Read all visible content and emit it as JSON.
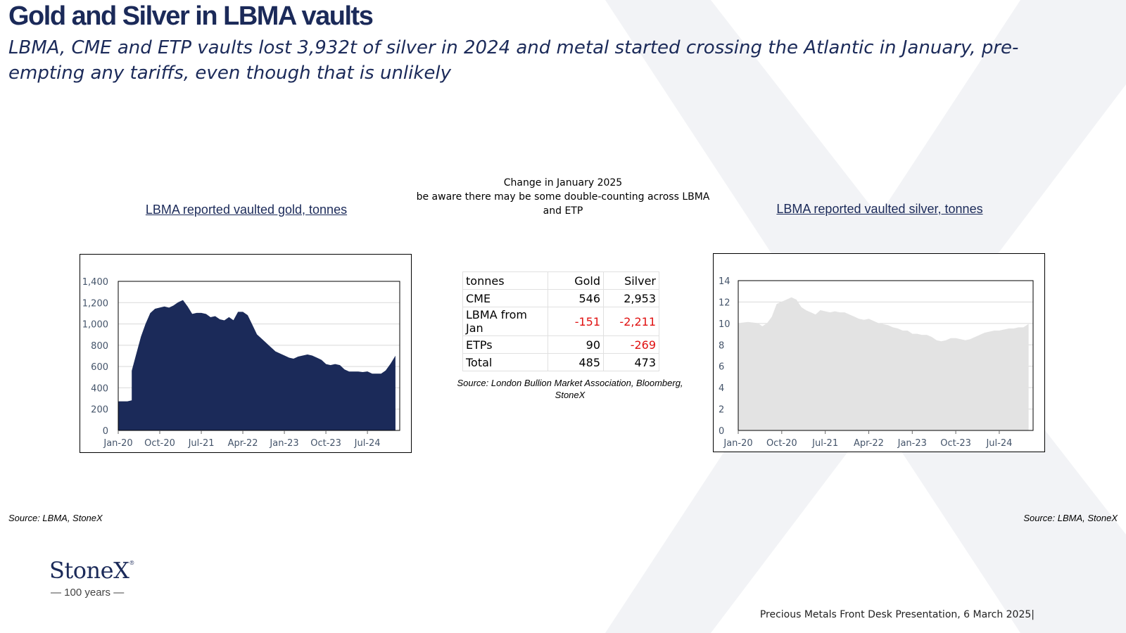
{
  "slide": {
    "title": "Gold and Silver in LBMA vaults",
    "subtitle": "LBMA, CME and ETP vaults lost 3,932t of silver in 2024 and  metal started crossing the Atlantic in January, pre-empting any tariffs, even though that is unlikely",
    "footer": "Precious Metals Front Desk Presentation, 6 March 2025|",
    "source_left": "Source: LBMA, StoneX",
    "source_right": "Source: LBMA, StoneX",
    "logo": {
      "name": "StoneX",
      "tagline": "— 100 years —"
    }
  },
  "center": {
    "note_line1": "Change in January 2025",
    "note_line2": "be aware there may be some double-counting across LBMA and ETP",
    "source": "Source: London Bullion Market Association, Bloomberg, StoneX"
  },
  "colors": {
    "gold_fill": "#1b2a59",
    "silver_fill": "#e3e3e3",
    "negative": "#e01010",
    "brand": "#1b2a59"
  },
  "chart_data": [
    {
      "type": "area",
      "title": "LBMA reported vaulted gold, tonnes",
      "x_ticks": [
        "Jan-20",
        "Oct-20",
        "Jul-21",
        "Apr-22",
        "Jan-23",
        "Oct-23",
        "Jul-24"
      ],
      "y_ticks": [
        "0",
        "200",
        "400",
        "600",
        "800",
        "1,000",
        "1,200",
        "1,400"
      ],
      "ylim": [
        0,
        1400
      ],
      "series": [
        {
          "values": [
            {
              "x": "2020-01",
              "y": 270
            },
            {
              "x": "2020-03",
              "y": 270
            },
            {
              "x": "2020-04",
              "y": 280
            },
            {
              "x": "2020-04",
              "y": 560
            },
            {
              "x": "2020-05",
              "y": 720
            },
            {
              "x": "2020-06",
              "y": 880
            },
            {
              "x": "2020-07",
              "y": 1000
            },
            {
              "x": "2020-08",
              "y": 1100
            },
            {
              "x": "2020-09",
              "y": 1140
            },
            {
              "x": "2020-10",
              "y": 1150
            },
            {
              "x": "2020-11",
              "y": 1160
            },
            {
              "x": "2020-12",
              "y": 1150
            },
            {
              "x": "2021-01",
              "y": 1170
            },
            {
              "x": "2021-02",
              "y": 1200
            },
            {
              "x": "2021-03",
              "y": 1220
            },
            {
              "x": "2021-04",
              "y": 1160
            },
            {
              "x": "2021-05",
              "y": 1090
            },
            {
              "x": "2021-06",
              "y": 1100
            },
            {
              "x": "2021-07",
              "y": 1100
            },
            {
              "x": "2021-08",
              "y": 1090
            },
            {
              "x": "2021-09",
              "y": 1060
            },
            {
              "x": "2021-10",
              "y": 1070
            },
            {
              "x": "2021-11",
              "y": 1040
            },
            {
              "x": "2021-12",
              "y": 1030
            },
            {
              "x": "2022-01",
              "y": 1060
            },
            {
              "x": "2022-02",
              "y": 1030
            },
            {
              "x": "2022-03",
              "y": 1110
            },
            {
              "x": "2022-04",
              "y": 1110
            },
            {
              "x": "2022-05",
              "y": 1080
            },
            {
              "x": "2022-06",
              "y": 990
            },
            {
              "x": "2022-07",
              "y": 900
            },
            {
              "x": "2022-08",
              "y": 860
            },
            {
              "x": "2022-09",
              "y": 820
            },
            {
              "x": "2022-10",
              "y": 780
            },
            {
              "x": "2022-11",
              "y": 740
            },
            {
              "x": "2022-12",
              "y": 720
            },
            {
              "x": "2023-01",
              "y": 700
            },
            {
              "x": "2023-02",
              "y": 680
            },
            {
              "x": "2023-03",
              "y": 670
            },
            {
              "x": "2023-04",
              "y": 690
            },
            {
              "x": "2023-05",
              "y": 700
            },
            {
              "x": "2023-06",
              "y": 710
            },
            {
              "x": "2023-07",
              "y": 700
            },
            {
              "x": "2023-08",
              "y": 680
            },
            {
              "x": "2023-09",
              "y": 660
            },
            {
              "x": "2023-10",
              "y": 620
            },
            {
              "x": "2023-11",
              "y": 610
            },
            {
              "x": "2023-12",
              "y": 620
            },
            {
              "x": "2024-01",
              "y": 610
            },
            {
              "x": "2024-02",
              "y": 570
            },
            {
              "x": "2024-03",
              "y": 550
            },
            {
              "x": "2024-04",
              "y": 550
            },
            {
              "x": "2024-05",
              "y": 550
            },
            {
              "x": "2024-06",
              "y": 545
            },
            {
              "x": "2024-07",
              "y": 550
            },
            {
              "x": "2024-08",
              "y": 530
            },
            {
              "x": "2024-09",
              "y": 530
            },
            {
              "x": "2024-10",
              "y": 530
            },
            {
              "x": "2024-11",
              "y": 560
            },
            {
              "x": "2024-12",
              "y": 620
            },
            {
              "x": "2025-01",
              "y": 690
            }
          ]
        }
      ]
    },
    {
      "type": "area",
      "title": "LBMA reported vaulted silver, tonnes",
      "x_ticks": [
        "Jan-20",
        "Oct-20",
        "Jul-21",
        "Apr-22",
        "Jan-23",
        "Oct-23",
        "Jul-24"
      ],
      "y_ticks": [
        "0",
        "2",
        "4",
        "6",
        "8",
        "10",
        "12",
        "14"
      ],
      "ylim": [
        0,
        14
      ],
      "series": [
        {
          "values": [
            {
              "x": "2020-01",
              "y": 10.0
            },
            {
              "x": "2020-03",
              "y": 10.1
            },
            {
              "x": "2020-05",
              "y": 10.0
            },
            {
              "x": "2020-06",
              "y": 9.7
            },
            {
              "x": "2020-07",
              "y": 10.0
            },
            {
              "x": "2020-08",
              "y": 10.6
            },
            {
              "x": "2020-09",
              "y": 11.8
            },
            {
              "x": "2020-10",
              "y": 12.0
            },
            {
              "x": "2020-11",
              "y": 12.2
            },
            {
              "x": "2020-12",
              "y": 12.4
            },
            {
              "x": "2021-01",
              "y": 12.2
            },
            {
              "x": "2021-02",
              "y": 11.5
            },
            {
              "x": "2021-03",
              "y": 11.2
            },
            {
              "x": "2021-04",
              "y": 11.0
            },
            {
              "x": "2021-05",
              "y": 10.8
            },
            {
              "x": "2021-06",
              "y": 11.2
            },
            {
              "x": "2021-07",
              "y": 11.1
            },
            {
              "x": "2021-08",
              "y": 11.0
            },
            {
              "x": "2021-09",
              "y": 11.1
            },
            {
              "x": "2021-10",
              "y": 11.0
            },
            {
              "x": "2021-11",
              "y": 11.0
            },
            {
              "x": "2021-12",
              "y": 10.8
            },
            {
              "x": "2022-01",
              "y": 10.6
            },
            {
              "x": "2022-02",
              "y": 10.4
            },
            {
              "x": "2022-03",
              "y": 10.3
            },
            {
              "x": "2022-04",
              "y": 10.4
            },
            {
              "x": "2022-05",
              "y": 10.2
            },
            {
              "x": "2022-06",
              "y": 10.0
            },
            {
              "x": "2022-07",
              "y": 9.9
            },
            {
              "x": "2022-08",
              "y": 9.8
            },
            {
              "x": "2022-09",
              "y": 9.6
            },
            {
              "x": "2022-10",
              "y": 9.5
            },
            {
              "x": "2022-11",
              "y": 9.3
            },
            {
              "x": "2022-12",
              "y": 9.3
            },
            {
              "x": "2023-01",
              "y": 9.0
            },
            {
              "x": "2023-02",
              "y": 9.0
            },
            {
              "x": "2023-03",
              "y": 8.9
            },
            {
              "x": "2023-04",
              "y": 8.9
            },
            {
              "x": "2023-05",
              "y": 8.7
            },
            {
              "x": "2023-06",
              "y": 8.4
            },
            {
              "x": "2023-07",
              "y": 8.3
            },
            {
              "x": "2023-08",
              "y": 8.4
            },
            {
              "x": "2023-09",
              "y": 8.6
            },
            {
              "x": "2023-10",
              "y": 8.6
            },
            {
              "x": "2023-11",
              "y": 8.5
            },
            {
              "x": "2023-12",
              "y": 8.4
            },
            {
              "x": "2024-01",
              "y": 8.5
            },
            {
              "x": "2024-02",
              "y": 8.7
            },
            {
              "x": "2024-03",
              "y": 8.9
            },
            {
              "x": "2024-04",
              "y": 9.1
            },
            {
              "x": "2024-05",
              "y": 9.2
            },
            {
              "x": "2024-06",
              "y": 9.3
            },
            {
              "x": "2024-07",
              "y": 9.3
            },
            {
              "x": "2024-08",
              "y": 9.4
            },
            {
              "x": "2024-09",
              "y": 9.5
            },
            {
              "x": "2024-10",
              "y": 9.5
            },
            {
              "x": "2024-11",
              "y": 9.6
            },
            {
              "x": "2024-12",
              "y": 9.6
            },
            {
              "x": "2025-01",
              "y": 9.9
            }
          ]
        }
      ]
    },
    {
      "type": "table",
      "columns": [
        "tonnes",
        "Gold",
        "Silver"
      ],
      "rows": [
        [
          "CME",
          "546",
          "2,953"
        ],
        [
          "LBMA from Jan",
          "-151",
          "-2,211"
        ],
        [
          "ETPs",
          "90",
          "-269"
        ],
        [
          "Total",
          "485",
          "473"
        ]
      ]
    }
  ]
}
